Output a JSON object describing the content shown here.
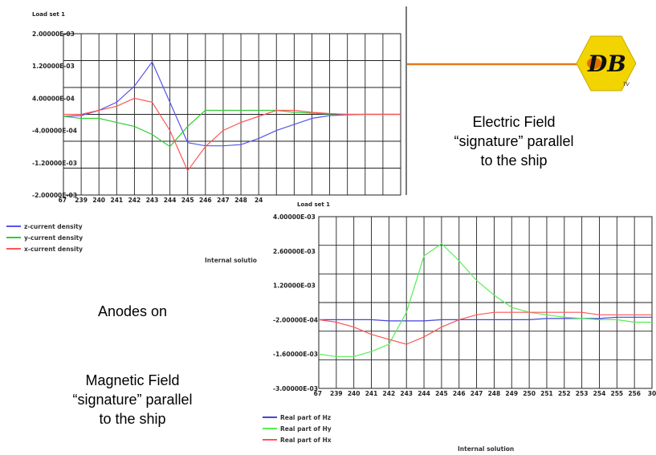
{
  "chart_data": [
    {
      "type": "line",
      "header": "Load set 1",
      "y_tick_labels": [
        "2.00000E-03",
        "1.20000E-03",
        "4.00000E-04",
        "-4.00000E-04",
        "-1.20000E-03",
        "-2.00000E-03"
      ],
      "ylim": [
        -0.002,
        0.002
      ],
      "x_tick_labels": [
        "67",
        "239",
        "240",
        "241",
        "242",
        "243",
        "244",
        "245",
        "246",
        "247",
        "248",
        "24"
      ],
      "x": [
        238,
        239,
        240,
        241,
        242,
        243,
        244,
        245,
        246,
        247,
        248,
        249,
        250,
        251,
        252,
        253,
        254,
        255,
        256,
        257
      ],
      "grid": true,
      "series": [
        {
          "name": "z-current density",
          "color": "#5555ee",
          "values": [
            -5e-05,
            -3e-05,
            0.0001,
            0.0003,
            0.0007,
            0.0013,
            0.0003,
            -0.0007,
            -0.00078,
            -0.00078,
            -0.00075,
            -0.0006,
            -0.0004,
            -0.00025,
            -0.0001,
            -3e-05,
            -1e-05,
            0,
            0,
            0
          ]
        },
        {
          "name": "y-current density",
          "color": "#33cc33",
          "values": [
            -5e-05,
            -0.0001,
            -0.0001,
            -0.0002,
            -0.0003,
            -0.0005,
            -0.0008,
            -0.0003,
            0.0001,
            0.0001,
            0.0001,
            0.0001,
            0.0001,
            5e-05,
            3e-05,
            1e-05,
            0,
            0,
            0,
            0
          ]
        },
        {
          "name": "x-current density",
          "color": "#ff5555",
          "values": [
            0,
            0,
            0.0001,
            0.0002,
            0.0004,
            0.0003,
            -0.0004,
            -0.0014,
            -0.0008,
            -0.0004,
            -0.0002,
            -5e-05,
            0.0001,
            0.0001,
            5e-05,
            2e-05,
            0,
            0,
            0,
            0
          ]
        }
      ]
    },
    {
      "type": "line",
      "header": "Load set 1",
      "y_tick_labels": [
        "4.00000E-03",
        "2.60000E-03",
        "1.20000E-03",
        "-2.00000E-04",
        "-1.60000E-03",
        "-3.00000E-03"
      ],
      "ylim": [
        -0.003,
        0.004
      ],
      "x_tick_labels": [
        "67",
        "239",
        "240",
        "241",
        "242",
        "243",
        "244",
        "245",
        "246",
        "247",
        "248",
        "249",
        "250",
        "251",
        "252",
        "253",
        "254",
        "255",
        "256",
        "30"
      ],
      "x": [
        238,
        239,
        240,
        241,
        242,
        243,
        244,
        245,
        246,
        247,
        248,
        249,
        250,
        251,
        252,
        253,
        254,
        255,
        256,
        257
      ],
      "grid": true,
      "xlabel": "Internal solution",
      "series": [
        {
          "name": "Real part of Hz",
          "color": "#4444dd",
          "values": [
            -0.0002,
            -0.0002,
            -0.0002,
            -0.0002,
            -0.00025,
            -0.00025,
            -0.00025,
            -0.0002,
            -0.0002,
            -0.0002,
            -0.0002,
            -0.0002,
            -0.0002,
            -0.00015,
            -0.00015,
            -0.00015,
            -0.00015,
            -0.0001,
            -0.0001,
            -0.0001
          ]
        },
        {
          "name": "Real part of Hy",
          "color": "#55ee55",
          "values": [
            -0.0016,
            -0.0017,
            -0.0017,
            -0.0015,
            -0.0012,
            0.0001,
            0.0024,
            0.0029,
            0.0022,
            0.0014,
            0.0008,
            0.0003,
            0.0001,
            0,
            -0.0001,
            -0.00015,
            -0.0002,
            -0.0002,
            -0.0003,
            -0.0003
          ]
        },
        {
          "name": "Real part of Hx",
          "color": "#ff5555",
          "values": [
            -0.0002,
            -0.0003,
            -0.0005,
            -0.0008,
            -0.001,
            -0.0012,
            -0.0009,
            -0.0005,
            -0.0002,
            0,
            0.0001,
            0.0001,
            0.0001,
            0.0001,
            0.0001,
            0.0001,
            0,
            0,
            0,
            0
          ]
        }
      ]
    }
  ],
  "top_legend_tail": "Internal solutio",
  "captions": {
    "electric": [
      "Electric Field",
      "“signature” parallel",
      "to the ship"
    ],
    "anodes": "Anodes on",
    "magnetic": [
      "Magnetic Field",
      "“signature” parallel",
      "to the ship"
    ]
  },
  "logo": {
    "letters": "DB",
    "small_text": "TV"
  }
}
